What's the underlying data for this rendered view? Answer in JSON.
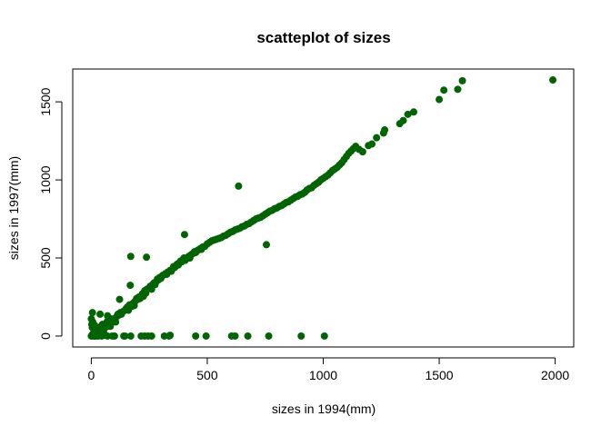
{
  "chart_data": {
    "type": "scatter",
    "title": "scatteplot of sizes",
    "xlabel": "sizes in 1994(mm)",
    "ylabel": "sizes in 1997(mm)",
    "xlim": [
      -80,
      2080
    ],
    "ylim": [
      -70,
      1710
    ],
    "xticks": [
      0,
      500,
      1000,
      1500,
      2000
    ],
    "yticks": [
      0,
      500,
      1000,
      1500
    ],
    "grid": false,
    "legend": "none",
    "point_color": "#006400",
    "series": [
      {
        "values": [
          [
            0,
            0
          ],
          [
            3,
            5
          ],
          [
            5,
            10
          ],
          [
            8,
            0
          ],
          [
            10,
            20
          ],
          [
            12,
            40
          ],
          [
            15,
            30
          ],
          [
            0,
            110
          ],
          [
            2,
            75
          ],
          [
            4,
            55
          ],
          [
            6,
            90
          ],
          [
            14,
            70
          ],
          [
            18,
            55
          ],
          [
            20,
            35
          ],
          [
            25,
            50
          ],
          [
            28,
            20
          ],
          [
            30,
            0
          ],
          [
            32,
            8
          ],
          [
            35,
            25
          ],
          [
            38,
            140
          ],
          [
            40,
            60
          ],
          [
            42,
            38
          ],
          [
            45,
            52
          ],
          [
            48,
            75
          ],
          [
            50,
            65
          ],
          [
            52,
            30
          ],
          [
            55,
            45
          ],
          [
            58,
            10
          ],
          [
            60,
            5
          ],
          [
            62,
            80
          ],
          [
            65,
            60
          ],
          [
            68,
            90
          ],
          [
            70,
            130
          ],
          [
            72,
            100
          ],
          [
            75,
            72
          ],
          [
            78,
            85
          ],
          [
            80,
            95
          ],
          [
            82,
            62
          ],
          [
            85,
            110
          ],
          [
            88,
            88
          ],
          [
            90,
            0
          ],
          [
            95,
            100
          ],
          [
            100,
            110
          ],
          [
            105,
            90
          ],
          [
            110,
            125
          ],
          [
            115,
            140
          ],
          [
            120,
            135
          ],
          [
            122,
            235
          ],
          [
            125,
            150
          ],
          [
            130,
            140
          ],
          [
            140,
            160
          ],
          [
            145,
            0
          ],
          [
            150,
            175
          ],
          [
            155,
            185
          ],
          [
            160,
            165
          ],
          [
            165,
            200
          ],
          [
            168,
            325
          ],
          [
            170,
            510
          ],
          [
            175,
            190
          ],
          [
            180,
            210
          ],
          [
            185,
            195
          ],
          [
            190,
            225
          ],
          [
            195,
            240
          ],
          [
            200,
            235
          ],
          [
            205,
            250
          ],
          [
            210,
            240
          ],
          [
            215,
            0
          ],
          [
            220,
            270
          ],
          [
            225,
            255
          ],
          [
            230,
            290
          ],
          [
            235,
            275
          ],
          [
            238,
            505
          ],
          [
            240,
            300
          ],
          [
            245,
            0
          ],
          [
            250,
            310
          ],
          [
            255,
            320
          ],
          [
            260,
            300
          ],
          [
            265,
            330
          ],
          [
            270,
            340
          ],
          [
            275,
            330
          ],
          [
            280,
            350
          ],
          [
            285,
            365
          ],
          [
            290,
            360
          ],
          [
            295,
            375
          ],
          [
            300,
            370
          ],
          [
            305,
            385
          ],
          [
            310,
            390
          ],
          [
            315,
            0
          ],
          [
            320,
            400
          ],
          [
            325,
            395
          ],
          [
            330,
            410
          ],
          [
            335,
            0
          ],
          [
            340,
            420
          ],
          [
            345,
            415
          ],
          [
            350,
            430
          ],
          [
            355,
            445
          ],
          [
            360,
            440
          ],
          [
            365,
            450
          ],
          [
            370,
            460
          ],
          [
            375,
            455
          ],
          [
            380,
            470
          ],
          [
            385,
            480
          ],
          [
            390,
            475
          ],
          [
            395,
            490
          ],
          [
            400,
            500
          ],
          [
            402,
            650
          ],
          [
            405,
            485
          ],
          [
            410,
            495
          ],
          [
            420,
            510
          ],
          [
            425,
            500
          ],
          [
            430,
            520
          ],
          [
            435,
            525
          ],
          [
            440,
            530
          ],
          [
            445,
            540
          ],
          [
            450,
            535
          ],
          [
            455,
            545
          ],
          [
            460,
            550
          ],
          [
            470,
            560
          ],
          [
            475,
            555
          ],
          [
            480,
            570
          ],
          [
            490,
            575
          ],
          [
            495,
            0
          ],
          [
            500,
            590
          ],
          [
            510,
            600
          ],
          [
            520,
            610
          ],
          [
            530,
            615
          ],
          [
            540,
            620
          ],
          [
            550,
            625
          ],
          [
            560,
            630
          ],
          [
            570,
            640
          ],
          [
            580,
            645
          ],
          [
            590,
            655
          ],
          [
            600,
            665
          ],
          [
            605,
            0
          ],
          [
            610,
            670
          ],
          [
            620,
            680
          ],
          [
            630,
            685
          ],
          [
            635,
            960
          ],
          [
            640,
            690
          ],
          [
            650,
            700
          ],
          [
            660,
            705
          ],
          [
            670,
            715
          ],
          [
            675,
            0
          ],
          [
            680,
            720
          ],
          [
            690,
            730
          ],
          [
            700,
            740
          ],
          [
            710,
            750
          ],
          [
            720,
            755
          ],
          [
            730,
            760
          ],
          [
            740,
            770
          ],
          [
            750,
            780
          ],
          [
            755,
            585
          ],
          [
            760,
            790
          ],
          [
            765,
            0
          ],
          [
            770,
            800
          ],
          [
            780,
            805
          ],
          [
            790,
            815
          ],
          [
            800,
            820
          ],
          [
            810,
            830
          ],
          [
            820,
            835
          ],
          [
            830,
            845
          ],
          [
            840,
            855
          ],
          [
            850,
            860
          ],
          [
            860,
            870
          ],
          [
            870,
            880
          ],
          [
            880,
            890
          ],
          [
            890,
            895
          ],
          [
            900,
            905
          ],
          [
            905,
            0
          ],
          [
            910,
            910
          ],
          [
            920,
            920
          ],
          [
            930,
            935
          ],
          [
            940,
            945
          ],
          [
            950,
            950
          ],
          [
            960,
            965
          ],
          [
            970,
            975
          ],
          [
            980,
            985
          ],
          [
            990,
            1000
          ],
          [
            1000,
            1010
          ],
          [
            1005,
            0
          ],
          [
            1010,
            1020
          ],
          [
            1020,
            1030
          ],
          [
            1030,
            1045
          ],
          [
            1040,
            1060
          ],
          [
            1050,
            1070
          ],
          [
            1060,
            1080
          ],
          [
            1070,
            1095
          ],
          [
            1080,
            1110
          ],
          [
            1090,
            1130
          ],
          [
            1100,
            1150
          ],
          [
            1110,
            1170
          ],
          [
            1120,
            1185
          ],
          [
            1130,
            1200
          ],
          [
            1140,
            1215
          ],
          [
            1155,
            1195
          ],
          [
            1170,
            1180
          ],
          [
            1195,
            1220
          ],
          [
            1210,
            1230
          ],
          [
            1230,
            1270
          ],
          [
            1260,
            1300
          ],
          [
            1265,
            1320
          ],
          [
            1330,
            1360
          ],
          [
            1345,
            1380
          ],
          [
            1365,
            1420
          ],
          [
            1390,
            1435
          ],
          [
            1500,
            1515
          ],
          [
            1520,
            1575
          ],
          [
            1580,
            1580
          ],
          [
            1600,
            1635
          ],
          [
            1990,
            1640
          ],
          [
            5,
            150
          ],
          [
            10,
            5
          ],
          [
            15,
            0
          ],
          [
            20,
            0
          ],
          [
            22,
            5
          ],
          [
            45,
            0
          ],
          [
            70,
            0
          ],
          [
            100,
            0
          ],
          [
            140,
            0
          ],
          [
            170,
            0
          ],
          [
            230,
            0
          ],
          [
            260,
            0
          ],
          [
            340,
            5
          ],
          [
            450,
            0
          ],
          [
            620,
            0
          ]
        ]
      }
    ]
  }
}
